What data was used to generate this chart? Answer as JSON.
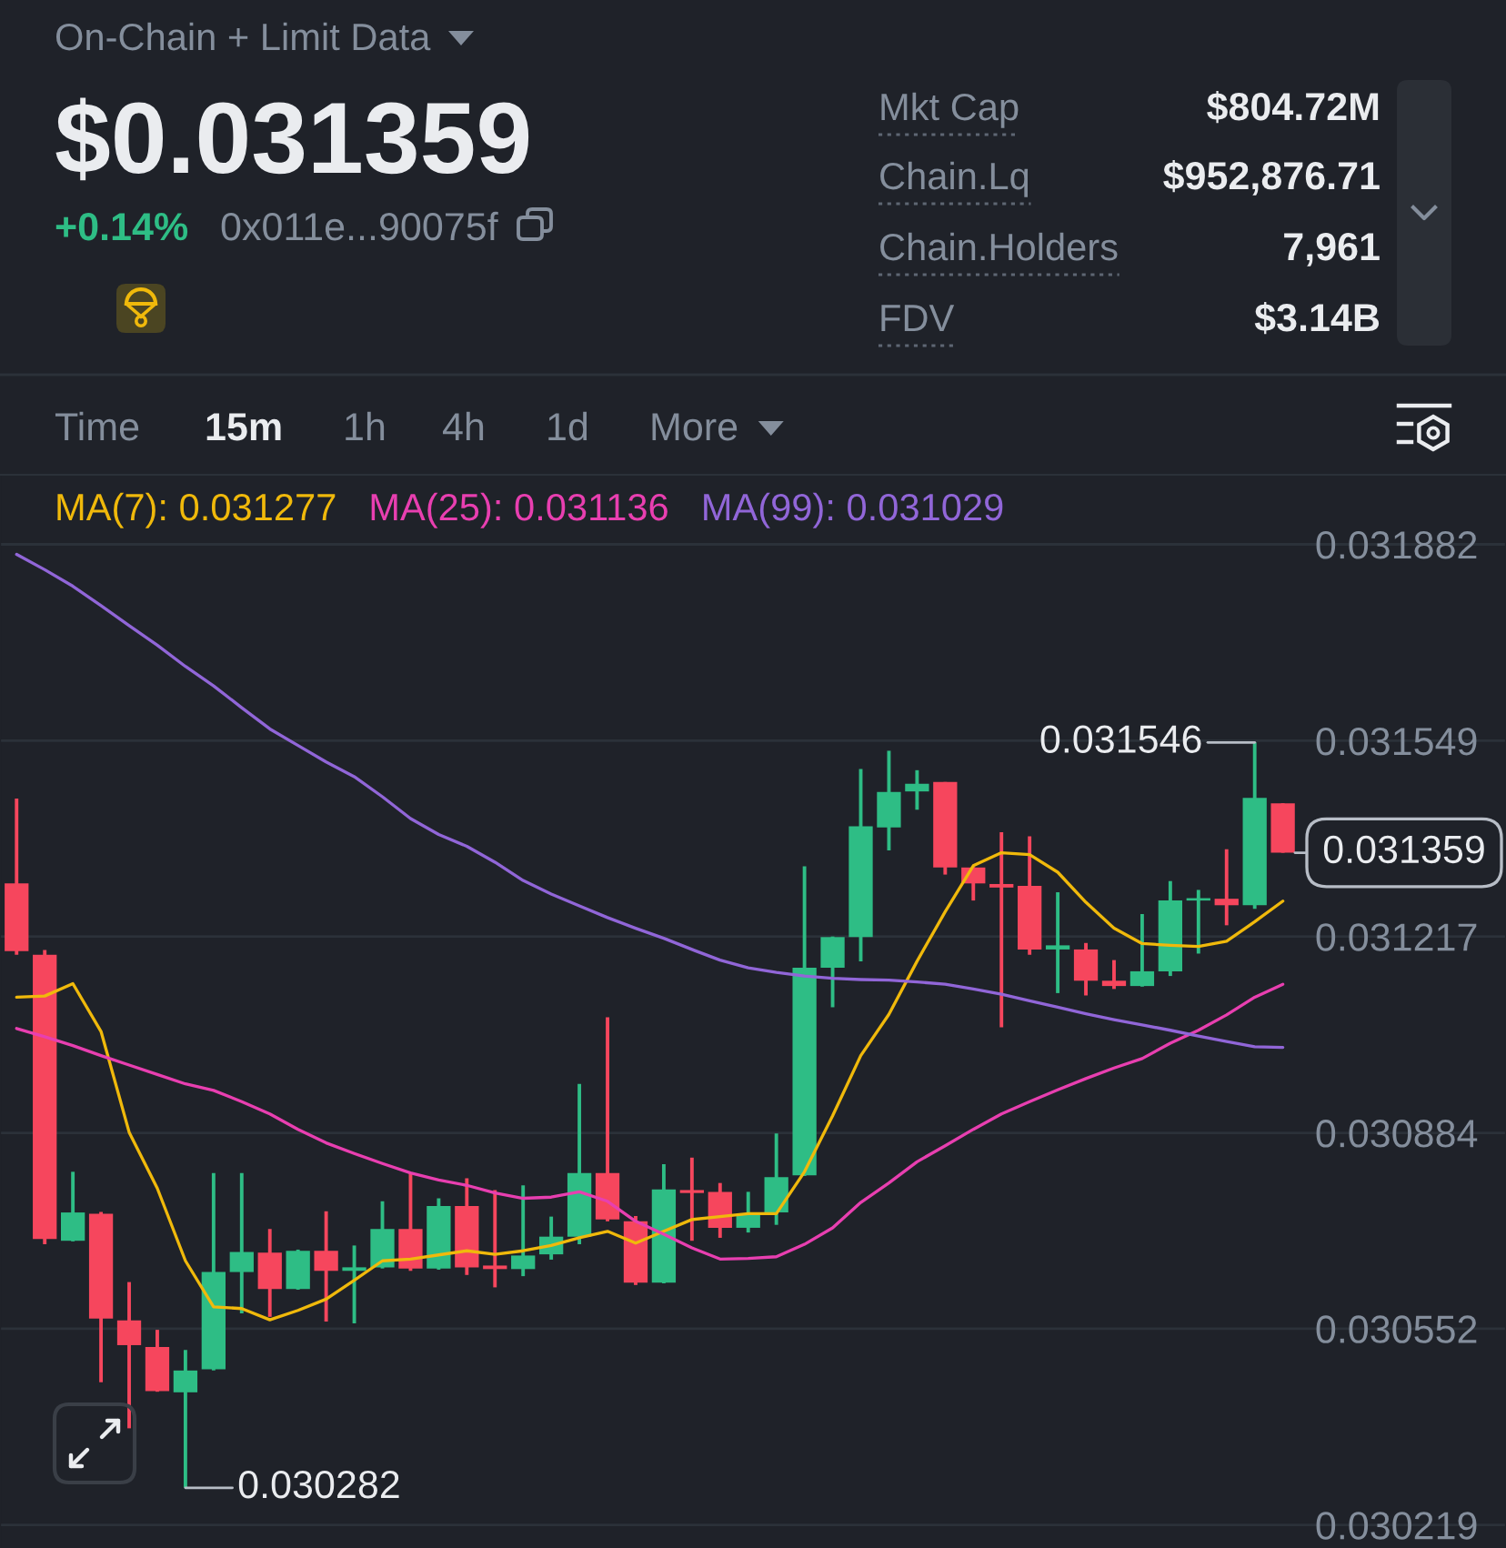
{
  "chart_data": {
    "type": "candlestick",
    "title": "$0.031359",
    "annotations": [
      "On-Chain + Limit Data",
      "+0.14%",
      "0x011e...90075f",
      "Mkt Cap",
      "$804.72M",
      "Chain.Lq",
      "$952,876.71",
      "Chain.Holders",
      "7,961",
      "FDV",
      "$3.14B",
      "Time",
      "15m",
      "1h",
      "4h",
      "1d",
      "More",
      "0.031546",
      "0.030282",
      "0.031359"
    ],
    "categories": [
      null,
      null,
      null,
      null,
      null,
      null,
      null,
      null,
      null,
      null,
      null,
      null,
      null,
      null,
      null,
      null,
      null,
      null,
      null,
      null,
      null,
      null,
      null,
      null,
      null,
      null,
      null,
      null,
      null,
      null,
      null,
      null,
      null,
      null,
      null,
      null,
      null,
      null,
      null,
      null,
      null,
      null,
      null,
      null,
      null,
      null
    ],
    "ohlc": [
      [
        0.031307,
        0.031451,
        0.031186,
        0.031192
      ],
      [
        0.031186,
        0.031194,
        0.030695,
        0.030704
      ],
      [
        0.030701,
        0.030818,
        0.0307,
        0.030749
      ],
      [
        0.030747,
        0.03075,
        0.030461,
        0.030569
      ],
      [
        0.030566,
        0.030631,
        0.030383,
        0.030524
      ],
      [
        0.030521,
        0.03055,
        0.030445,
        0.030446
      ],
      [
        0.030444,
        0.030516,
        0.030282,
        0.030481
      ],
      [
        0.030483,
        0.030816,
        0.030481,
        0.030648
      ],
      [
        0.030648,
        0.030816,
        0.030578,
        0.030682
      ],
      [
        0.030681,
        0.030721,
        0.030572,
        0.030619
      ],
      [
        0.030619,
        0.030686,
        0.030618,
        0.030684
      ],
      [
        0.030684,
        0.030751,
        0.030564,
        0.03065
      ],
      [
        0.03065,
        0.030693,
        0.030561,
        0.030656
      ],
      [
        0.030656,
        0.030768,
        0.030654,
        0.030721
      ],
      [
        0.030721,
        0.030816,
        0.03065,
        0.030654
      ],
      [
        0.030654,
        0.030773,
        0.030652,
        0.03076
      ],
      [
        0.03076,
        0.030807,
        0.030643,
        0.030656
      ],
      [
        0.030659,
        0.030787,
        0.030622,
        0.030653
      ],
      [
        0.030653,
        0.030795,
        0.030641,
        0.030676
      ],
      [
        0.030678,
        0.030742,
        0.030669,
        0.030708
      ],
      [
        0.030708,
        0.030967,
        0.030695,
        0.030816
      ],
      [
        0.030816,
        0.03108,
        0.030734,
        0.030737
      ],
      [
        0.030734,
        0.030743,
        0.030626,
        0.03063
      ],
      [
        0.03063,
        0.030831,
        0.030629,
        0.030788
      ],
      [
        0.030787,
        0.030842,
        0.030701,
        0.030782
      ],
      [
        0.030784,
        0.030799,
        0.030706,
        0.030723
      ],
      [
        0.030723,
        0.030784,
        0.030715,
        0.030745
      ],
      [
        0.030749,
        0.030883,
        0.030728,
        0.030809
      ],
      [
        0.030812,
        0.031336,
        0.030811,
        0.031164
      ],
      [
        0.031164,
        0.031217,
        0.031097,
        0.031216
      ],
      [
        0.031216,
        0.031501,
        0.031175,
        0.031404
      ],
      [
        0.031402,
        0.031532,
        0.031363,
        0.031462
      ],
      [
        0.031463,
        0.031499,
        0.031432,
        0.031476
      ],
      [
        0.031479,
        0.031479,
        0.031322,
        0.031334
      ],
      [
        0.031334,
        0.031335,
        0.031278,
        0.031307
      ],
      [
        0.031306,
        0.031394,
        0.031063,
        0.0313
      ],
      [
        0.031303,
        0.031387,
        0.031186,
        0.031195
      ],
      [
        0.031195,
        0.031292,
        0.031121,
        0.031202
      ],
      [
        0.031195,
        0.031206,
        0.031117,
        0.031142
      ],
      [
        0.031142,
        0.031177,
        0.031128,
        0.031133
      ],
      [
        0.031133,
        0.031255,
        0.031132,
        0.031158
      ],
      [
        0.031158,
        0.031311,
        0.03115,
        0.031278
      ],
      [
        0.031278,
        0.031296,
        0.031188,
        0.031282
      ],
      [
        0.031281,
        0.031365,
        0.031236,
        0.03127
      ],
      [
        0.03127,
        0.031546,
        0.031264,
        0.031452
      ],
      [
        0.031443,
        0.031443,
        0.031359,
        0.031359
      ]
    ],
    "colors": [
      "#f6465d",
      "#f6465d",
      "#2ebd85",
      "#f6465d",
      "#f6465d",
      "#f6465d",
      "#2ebd85",
      "#2ebd85",
      "#2ebd85",
      "#f6465d",
      "#2ebd85",
      "#f6465d",
      "#2ebd85",
      "#2ebd85",
      "#f6465d",
      "#2ebd85",
      "#f6465d",
      "#f6465d",
      "#2ebd85",
      "#2ebd85",
      "#2ebd85",
      "#f6465d",
      "#f6465d",
      "#2ebd85",
      "#f6465d",
      "#f6465d",
      "#2ebd85",
      "#2ebd85",
      "#2ebd85",
      "#2ebd85",
      "#2ebd85",
      "#2ebd85",
      "#2ebd85",
      "#f6465d",
      "#f6465d",
      "#f6465d",
      "#f6465d",
      "#2ebd85",
      "#f6465d",
      "#f6465d",
      "#2ebd85",
      "#2ebd85",
      "#2ebd85",
      "#f6465d",
      "#2ebd85",
      "#f6465d"
    ],
    "series": [
      {
        "name": "MA(7): 0.031277",
        "type": "line",
        "color": "#f0b90b",
        "values": [
          0.031114,
          0.031116,
          0.031137,
          0.031056,
          0.030885,
          0.03079,
          0.030667,
          0.030589,
          0.030586,
          0.030567,
          0.030583,
          0.030602,
          0.030634,
          0.030667,
          0.03067,
          0.030677,
          0.030684,
          0.030678,
          0.030684,
          0.030693,
          0.030706,
          0.030717,
          0.030697,
          0.030717,
          0.030737,
          0.030742,
          0.030747,
          0.030747,
          0.030818,
          0.030913,
          0.031015,
          0.031085,
          0.031175,
          0.031259,
          0.031337,
          0.031359,
          0.031356,
          0.031326,
          0.031275,
          0.031231,
          0.031205,
          0.031202,
          0.0312,
          0.031209,
          0.031242,
          0.031277
        ]
      },
      {
        "name": "MA(25): 0.031136",
        "type": "line",
        "color": "#e83fb0",
        "values": [
          0.031061,
          0.031047,
          0.031032,
          0.031015,
          0.030999,
          0.030983,
          0.030967,
          0.030956,
          0.030937,
          0.030916,
          0.03089,
          0.030867,
          0.030849,
          0.030832,
          0.030816,
          0.030804,
          0.030795,
          0.030782,
          0.030773,
          0.030775,
          0.030784,
          0.030768,
          0.030734,
          0.030712,
          0.030689,
          0.03067,
          0.030671,
          0.030674,
          0.030695,
          0.030723,
          0.030766,
          0.030799,
          0.030835,
          0.030862,
          0.03089,
          0.030916,
          0.030937,
          0.030957,
          0.030976,
          0.030994,
          0.03101,
          0.031036,
          0.031058,
          0.031084,
          0.031114,
          0.031136
        ]
      },
      {
        "name": "MA(99): 0.031029",
        "type": "line",
        "color": "#9166d8",
        "values": [
          0.031865,
          0.031839,
          0.031811,
          0.031778,
          0.031744,
          0.031711,
          0.031675,
          0.031642,
          0.031605,
          0.031569,
          0.031541,
          0.031513,
          0.031488,
          0.031454,
          0.031417,
          0.03139,
          0.03137,
          0.031343,
          0.031312,
          0.031289,
          0.031269,
          0.031249,
          0.031231,
          0.031214,
          0.031195,
          0.031177,
          0.031164,
          0.031156,
          0.03115,
          0.031146,
          0.031144,
          0.031143,
          0.03114,
          0.031136,
          0.031128,
          0.031119,
          0.031108,
          0.031097,
          0.031086,
          0.031076,
          0.031067,
          0.031058,
          0.031048,
          0.031039,
          0.03103,
          0.031029
        ]
      }
    ],
    "ylim": [
      0.03018,
      0.032
    ],
    "yticks": [
      0.031882,
      0.031549,
      0.031217,
      0.030884,
      0.030552,
      0.030219
    ],
    "grid": "y",
    "legend": "top left",
    "tick_labels": "y"
  }
}
